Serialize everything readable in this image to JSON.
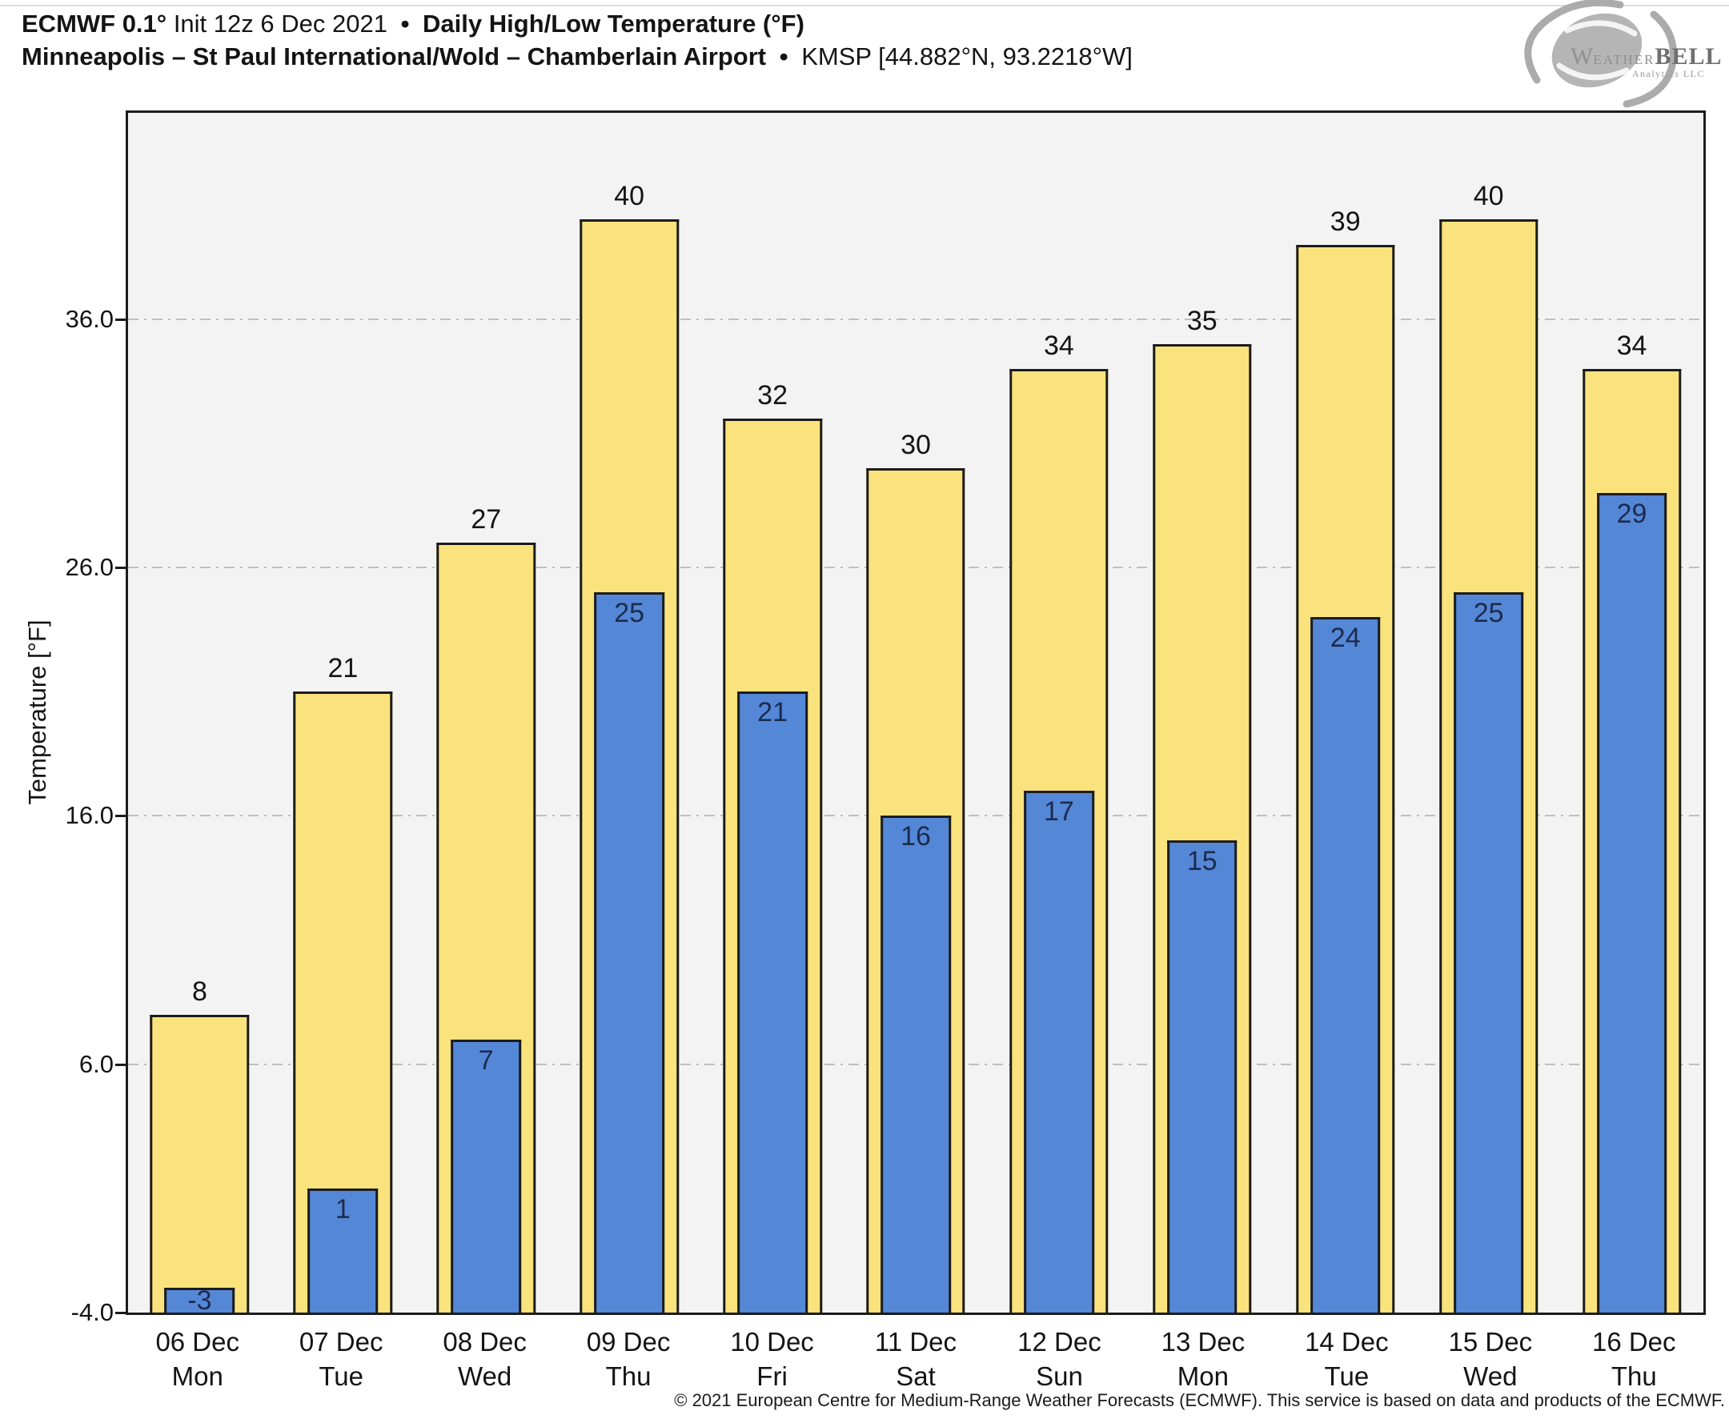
{
  "header": {
    "model": "ECMWF 0.1°",
    "init": "Init 12z 6 Dec 2021",
    "separator": "•",
    "parameter": "Daily High/Low Temperature (°F)",
    "station": "Minneapolis – St Paul International/Wold – Chamberlain Airport",
    "station_code": "KMSP [44.882°N, 93.2218°W]"
  },
  "logo": {
    "brand_w": "W",
    "brand_rest": "EATHER",
    "brand_bold": "BELL",
    "tagline": "Analytics LLC"
  },
  "footer": {
    "copyright": "© 2021 European Centre for Medium-Range Weather Forecasts (ECMWF). This service is based on data and products of the ECMWF."
  },
  "chart_data": {
    "type": "bar",
    "title": "ECMWF 0.1° Init 12z 6 Dec 2021 • Daily High/Low Temperature (°F) — Minneapolis – St Paul International/Wold – Chamberlain Airport • KMSP [44.882°N, 93.2218°W]",
    "categories": [
      {
        "date": "06 Dec",
        "day": "Mon"
      },
      {
        "date": "07 Dec",
        "day": "Tue"
      },
      {
        "date": "08 Dec",
        "day": "Wed"
      },
      {
        "date": "09 Dec",
        "day": "Thu"
      },
      {
        "date": "10 Dec",
        "day": "Fri"
      },
      {
        "date": "11 Dec",
        "day": "Sat"
      },
      {
        "date": "12 Dec",
        "day": "Sun"
      },
      {
        "date": "13 Dec",
        "day": "Mon"
      },
      {
        "date": "14 Dec",
        "day": "Tue"
      },
      {
        "date": "15 Dec",
        "day": "Wed"
      },
      {
        "date": "16 Dec",
        "day": "Thu"
      }
    ],
    "series": [
      {
        "name": "Daily High",
        "color": "#FAE37C",
        "values": [
          8,
          21,
          27,
          40,
          32,
          30,
          34,
          35,
          39,
          40,
          34
        ]
      },
      {
        "name": "Daily Low",
        "color": "#5587D7",
        "values": [
          -3,
          1,
          7,
          25,
          21,
          16,
          17,
          15,
          24,
          25,
          29
        ]
      }
    ],
    "xlabel": "",
    "ylabel": "Temperature [°F]",
    "yticks": [
      "-4.0",
      "6.0",
      "16.0",
      "26.0",
      "36.0"
    ],
    "ytick_values": [
      -4,
      6,
      16,
      26,
      36
    ],
    "ylim": [
      -4,
      44.3
    ],
    "grid": "horizontal-dashed",
    "legend": "none",
    "bar_labels": "high above bar, low inside bar top",
    "plot_background": "#f3f3f3",
    "bar_border_color": "#1c1c1c"
  }
}
